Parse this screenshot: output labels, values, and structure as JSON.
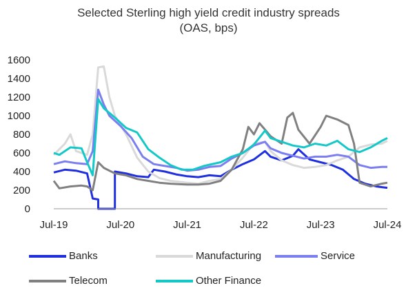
{
  "chart_data": {
    "type": "line",
    "title": "Selected Sterling high yield credit industry spreads",
    "subtitle": "(OAS, bps)",
    "xlabel": "",
    "ylabel": "",
    "x_ticks": [
      "Jul-19",
      "Jul-20",
      "Jul-21",
      "Jul-22",
      "Jul-23",
      "Jul-24"
    ],
    "y_ticks": [
      0,
      200,
      400,
      600,
      800,
      1000,
      1200,
      1400,
      1600
    ],
    "xlim": [
      "2019-07",
      "2024-07"
    ],
    "ylim": [
      0,
      1600
    ],
    "grid": false,
    "legend_position": "bottom",
    "series": [
      {
        "name": "Banks",
        "color": "#1f2fe0",
        "points": [
          [
            "2019-07",
            390
          ],
          [
            "2019-09",
            420
          ],
          [
            "2019-11",
            410
          ],
          [
            "2020-01",
            380
          ],
          [
            "2020-02",
            110
          ],
          [
            "2020-03",
            100
          ],
          [
            "2020-03",
            0
          ],
          [
            "2020-06",
            0
          ],
          [
            "2020-06",
            400
          ],
          [
            "2020-08",
            380
          ],
          [
            "2020-10",
            350
          ],
          [
            "2020-12",
            340
          ],
          [
            "2021-01",
            420
          ],
          [
            "2021-03",
            400
          ],
          [
            "2021-05",
            370
          ],
          [
            "2021-07",
            350
          ],
          [
            "2021-09",
            340
          ],
          [
            "2021-11",
            360
          ],
          [
            "2022-01",
            350
          ],
          [
            "2022-03",
            420
          ],
          [
            "2022-05",
            480
          ],
          [
            "2022-07",
            530
          ],
          [
            "2022-09",
            620
          ],
          [
            "2022-10",
            560
          ],
          [
            "2022-12",
            520
          ],
          [
            "2023-02",
            570
          ],
          [
            "2023-03",
            640
          ],
          [
            "2023-05",
            530
          ],
          [
            "2023-07",
            500
          ],
          [
            "2023-09",
            470
          ],
          [
            "2023-11",
            420
          ],
          [
            "2024-01",
            320
          ],
          [
            "2024-03",
            270
          ],
          [
            "2024-05",
            240
          ],
          [
            "2024-07",
            225
          ]
        ]
      },
      {
        "name": "Manufacturing",
        "color": "#d9d9d9",
        "points": [
          [
            "2019-07",
            580
          ],
          [
            "2019-09",
            700
          ],
          [
            "2019-10",
            800
          ],
          [
            "2019-11",
            620
          ],
          [
            "2020-01",
            580
          ],
          [
            "2020-02",
            800
          ],
          [
            "2020-03",
            1520
          ],
          [
            "2020-04",
            1530
          ],
          [
            "2020-05",
            1200
          ],
          [
            "2020-06",
            1000
          ],
          [
            "2020-08",
            800
          ],
          [
            "2020-10",
            550
          ],
          [
            "2020-12",
            400
          ],
          [
            "2021-02",
            330
          ],
          [
            "2021-04",
            300
          ],
          [
            "2021-07",
            280
          ],
          [
            "2021-09",
            270
          ],
          [
            "2021-11",
            300
          ],
          [
            "2022-01",
            320
          ],
          [
            "2022-03",
            420
          ],
          [
            "2022-05",
            550
          ],
          [
            "2022-07",
            700
          ],
          [
            "2022-09",
            720
          ],
          [
            "2022-10",
            620
          ],
          [
            "2022-12",
            520
          ],
          [
            "2023-02",
            470
          ],
          [
            "2023-04",
            440
          ],
          [
            "2023-06",
            450
          ],
          [
            "2023-08",
            470
          ],
          [
            "2023-10",
            520
          ],
          [
            "2023-12",
            560
          ],
          [
            "2024-02",
            660
          ],
          [
            "2024-04",
            690
          ],
          [
            "2024-06",
            700
          ],
          [
            "2024-07",
            730
          ]
        ]
      },
      {
        "name": "Service",
        "color": "#7b7ef0",
        "points": [
          [
            "2019-07",
            480
          ],
          [
            "2019-09",
            510
          ],
          [
            "2019-11",
            490
          ],
          [
            "2020-01",
            480
          ],
          [
            "2020-02",
            620
          ],
          [
            "2020-03",
            1280
          ],
          [
            "2020-04",
            1120
          ],
          [
            "2020-05",
            1000
          ],
          [
            "2020-07",
            890
          ],
          [
            "2020-09",
            760
          ],
          [
            "2020-11",
            560
          ],
          [
            "2021-01",
            480
          ],
          [
            "2021-03",
            460
          ],
          [
            "2021-05",
            440
          ],
          [
            "2021-07",
            410
          ],
          [
            "2021-09",
            420
          ],
          [
            "2021-11",
            450
          ],
          [
            "2022-01",
            460
          ],
          [
            "2022-03",
            540
          ],
          [
            "2022-05",
            600
          ],
          [
            "2022-07",
            680
          ],
          [
            "2022-09",
            720
          ],
          [
            "2022-10",
            650
          ],
          [
            "2022-12",
            600
          ],
          [
            "2023-02",
            570
          ],
          [
            "2023-04",
            540
          ],
          [
            "2023-06",
            560
          ],
          [
            "2023-08",
            560
          ],
          [
            "2023-10",
            580
          ],
          [
            "2023-12",
            560
          ],
          [
            "2024-02",
            470
          ],
          [
            "2024-04",
            440
          ],
          [
            "2024-06",
            450
          ],
          [
            "2024-07",
            450
          ]
        ]
      },
      {
        "name": "Telecom",
        "color": "#808080",
        "points": [
          [
            "2019-07",
            300
          ],
          [
            "2019-08",
            220
          ],
          [
            "2019-10",
            240
          ],
          [
            "2019-12",
            250
          ],
          [
            "2020-01",
            240
          ],
          [
            "2020-02",
            200
          ],
          [
            "2020-03",
            500
          ],
          [
            "2020-04",
            440
          ],
          [
            "2020-06",
            380
          ],
          [
            "2020-08",
            360
          ],
          [
            "2020-10",
            320
          ],
          [
            "2020-12",
            300
          ],
          [
            "2021-02",
            280
          ],
          [
            "2021-04",
            270
          ],
          [
            "2021-07",
            260
          ],
          [
            "2021-09",
            260
          ],
          [
            "2021-11",
            270
          ],
          [
            "2022-01",
            300
          ],
          [
            "2022-03",
            420
          ],
          [
            "2022-05",
            640
          ],
          [
            "2022-06",
            880
          ],
          [
            "2022-07",
            800
          ],
          [
            "2022-08",
            920
          ],
          [
            "2022-10",
            780
          ],
          [
            "2022-12",
            700
          ],
          [
            "2023-01",
            980
          ],
          [
            "2023-02",
            1030
          ],
          [
            "2023-03",
            850
          ],
          [
            "2023-05",
            700
          ],
          [
            "2023-07",
            880
          ],
          [
            "2023-08",
            1000
          ],
          [
            "2023-10",
            960
          ],
          [
            "2023-12",
            900
          ],
          [
            "2024-01",
            700
          ],
          [
            "2024-02",
            280
          ],
          [
            "2024-04",
            240
          ],
          [
            "2024-06",
            270
          ],
          [
            "2024-07",
            280
          ]
        ]
      },
      {
        "name": "Other Finance",
        "color": "#14c8c8",
        "points": [
          [
            "2019-07",
            600
          ],
          [
            "2019-08",
            580
          ],
          [
            "2019-10",
            660
          ],
          [
            "2019-12",
            650
          ],
          [
            "2020-01",
            500
          ],
          [
            "2020-02",
            360
          ],
          [
            "2020-03",
            1180
          ],
          [
            "2020-04",
            1080
          ],
          [
            "2020-06",
            980
          ],
          [
            "2020-08",
            870
          ],
          [
            "2020-10",
            820
          ],
          [
            "2020-12",
            640
          ],
          [
            "2021-02",
            550
          ],
          [
            "2021-04",
            470
          ],
          [
            "2021-06",
            420
          ],
          [
            "2021-08",
            420
          ],
          [
            "2021-10",
            460
          ],
          [
            "2022-01",
            500
          ],
          [
            "2022-03",
            560
          ],
          [
            "2022-05",
            600
          ],
          [
            "2022-07",
            690
          ],
          [
            "2022-09",
            840
          ],
          [
            "2022-10",
            760
          ],
          [
            "2022-12",
            720
          ],
          [
            "2023-02",
            680
          ],
          [
            "2023-04",
            660
          ],
          [
            "2023-06",
            700
          ],
          [
            "2023-08",
            680
          ],
          [
            "2023-10",
            730
          ],
          [
            "2023-12",
            640
          ],
          [
            "2024-02",
            610
          ],
          [
            "2024-04",
            660
          ],
          [
            "2024-06",
            730
          ],
          [
            "2024-07",
            760
          ]
        ]
      }
    ]
  },
  "title_text": {
    "line1": "Selected Sterling high yield credit industry spreads",
    "line2": "(OAS, bps)"
  },
  "legend": {
    "banks": "Banks",
    "manufacturing": "Manufacturing",
    "service": "Service",
    "telecom": "Telecom",
    "other_finance": "Other Finance"
  }
}
